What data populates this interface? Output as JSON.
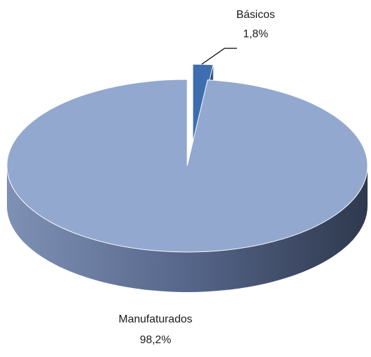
{
  "chart_data": {
    "type": "pie",
    "categories": [
      "Básicos",
      "Manufaturados"
    ],
    "values": [
      1.8,
      98.2
    ],
    "value_labels": [
      "1,8%",
      "98,2%"
    ],
    "colors": [
      "#3e6db0",
      "#93a8cf"
    ]
  }
}
